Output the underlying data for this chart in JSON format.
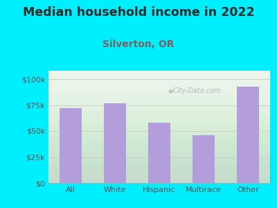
{
  "title": "Median household income in 2022",
  "subtitle": "Silverton, OR",
  "categories": [
    "All",
    "White",
    "Hispanic",
    "Multirace",
    "Other"
  ],
  "values": [
    72000,
    77000,
    58000,
    46000,
    93000
  ],
  "bar_color": "#b39ddb",
  "background_color": "#00efff",
  "plot_bg_top": "#e8f5e9",
  "plot_bg_bottom": "#f5fff5",
  "title_color": "#2a2a2a",
  "subtitle_color": "#7a6060",
  "tick_label_color": "#5a4a4a",
  "grid_color": "#cccccc",
  "yticks": [
    0,
    25000,
    50000,
    75000,
    100000
  ],
  "ytick_labels": [
    "$0",
    "$25k",
    "$50k",
    "$75k",
    "$100k"
  ],
  "ylim": [
    0,
    108000
  ],
  "watermark": "City-Data.com",
  "title_fontsize": 12.5,
  "subtitle_fontsize": 10,
  "tick_fontsize": 8
}
